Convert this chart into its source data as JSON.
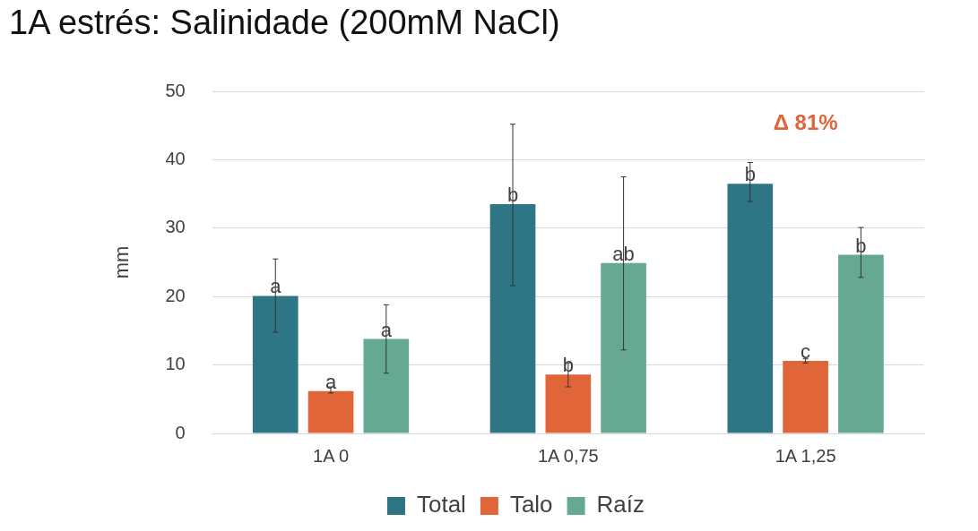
{
  "chart_data": {
    "type": "bar",
    "title": "1A estrés: Salinidade (200mM NaCl)",
    "ylabel": "mm",
    "categories": [
      "1A 0",
      "1A 0,75",
      "1A 1,25"
    ],
    "series": [
      {
        "name": "Total",
        "color": "#2e7585",
        "values": [
          20.1,
          33.5,
          36.5
        ],
        "errors": [
          [
            14.8,
            25.5
          ],
          [
            21.6,
            45.2
          ],
          [
            33.9,
            39.6
          ]
        ],
        "value_labels": [
          "a",
          "b",
          "b"
        ]
      },
      {
        "name": "Talo",
        "color": "#e0663a",
        "values": [
          6.2,
          8.6,
          10.6
        ],
        "errors": [
          [
            5.9,
            6.8
          ],
          [
            6.8,
            10.3
          ],
          [
            10.3,
            10.9
          ]
        ],
        "value_labels": [
          "a",
          "b",
          "c"
        ]
      },
      {
        "name": "Raíz",
        "color": "#66a993",
        "values": [
          13.8,
          24.9,
          26.1
        ],
        "errors": [
          [
            8.8,
            18.8
          ],
          [
            12.2,
            37.5
          ],
          [
            22.8,
            30.1
          ]
        ],
        "value_labels": [
          "a",
          "ab",
          "b"
        ]
      }
    ],
    "annotations": [
      "Δ 81%"
    ],
    "ylim": [
      0,
      50
    ],
    "yticks": [
      0,
      10,
      20,
      30,
      40,
      50
    ],
    "grid": "y",
    "legend": "bottom"
  }
}
